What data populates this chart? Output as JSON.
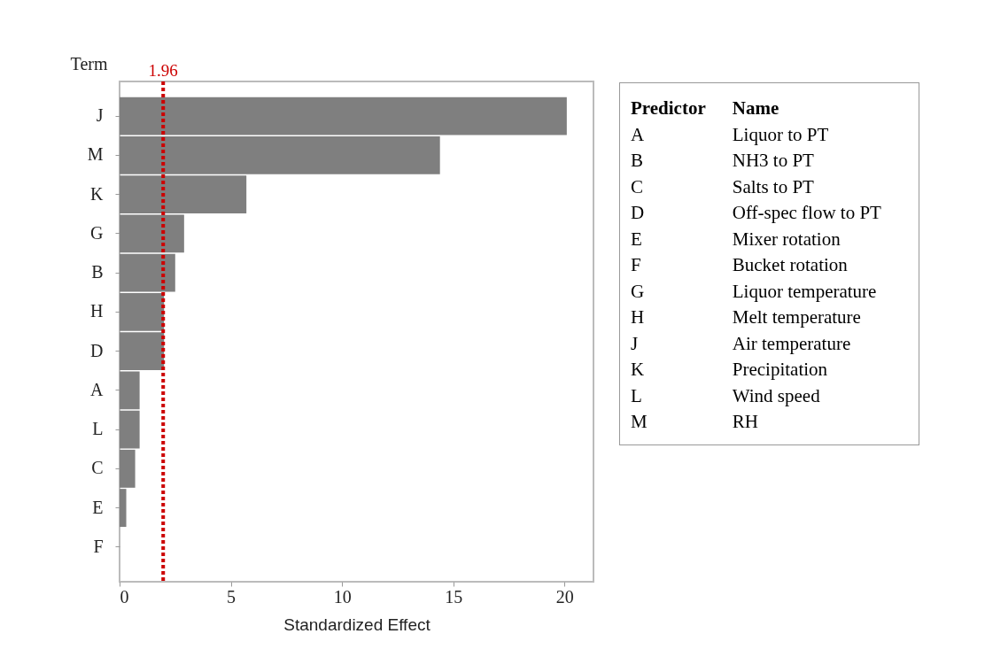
{
  "chart_data": {
    "type": "bar",
    "orientation": "horizontal",
    "xlabel": "Standardized Effect",
    "ylabel": "Term",
    "categories": [
      "J",
      "M",
      "K",
      "G",
      "B",
      "H",
      "D",
      "A",
      "L",
      "C",
      "E",
      "F"
    ],
    "values": [
      20.1,
      14.4,
      5.7,
      2.9,
      2.5,
      2.0,
      2.0,
      0.9,
      0.9,
      0.7,
      0.3,
      0.0
    ],
    "color": "#7f7f7f",
    "xlim": [
      0,
      21.3
    ],
    "xticks": [
      0,
      5,
      10,
      15,
      20
    ],
    "grid": false,
    "ref_lines": [
      {
        "axis": "x",
        "value": 1.96,
        "label": "1.96",
        "color": "#cc0000",
        "line_style": "dashed"
      }
    ],
    "annotations": [
      "Predictor",
      "Name",
      "A",
      "Liquor to PT",
      "B",
      "NH3 to PT",
      "C",
      "Salts to PT",
      "D",
      "Off-spec flow to PT",
      "E",
      "Mixer rotation",
      "F",
      "Bucket rotation",
      "G",
      "Liquor temperature",
      "H",
      "Melt temperature",
      "J",
      "Air temperature",
      "K",
      "Precipitation",
      "L",
      "Wind speed",
      "M",
      "RH"
    ]
  }
}
